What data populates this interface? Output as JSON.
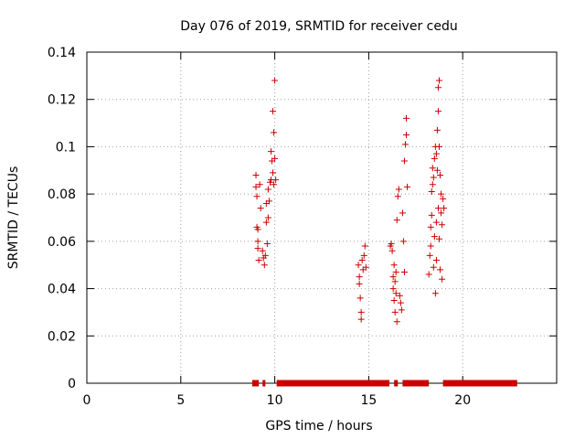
{
  "chart_data": {
    "type": "scatter",
    "title": "Day 076 of 2019, SRMTID for receiver cedu",
    "xlabel": "GPS time / hours",
    "ylabel": "SRMTID / TECUs",
    "xlim": [
      0,
      25
    ],
    "ylim": [
      0,
      0.14
    ],
    "xticks": [
      0,
      5,
      10,
      15,
      20
    ],
    "yticks": [
      0,
      0.02,
      0.04,
      0.06,
      0.08,
      0.1,
      0.12,
      0.14
    ],
    "xtick_labels": [
      "0",
      "5",
      "10",
      "15",
      "20"
    ],
    "ytick_labels": [
      "0",
      "0.02",
      "0.04",
      "0.06",
      "0.08",
      "0.1",
      "0.12",
      "0.14"
    ],
    "grid": true,
    "marker": "+",
    "color": "#cc0000",
    "series": [
      {
        "name": "SRMTID",
        "points": [
          [
            9.0,
            0.088
          ],
          [
            9.0,
            0.083
          ],
          [
            9.05,
            0.079
          ],
          [
            9.05,
            0.066
          ],
          [
            9.1,
            0.065
          ],
          [
            9.1,
            0.06
          ],
          [
            9.1,
            0.057
          ],
          [
            9.15,
            0.052
          ],
          [
            9.2,
            0.084
          ],
          [
            9.25,
            0.074
          ],
          [
            9.35,
            0.056
          ],
          [
            9.4,
            0.053
          ],
          [
            9.45,
            0.05
          ],
          [
            9.5,
            0.054
          ],
          [
            9.55,
            0.076
          ],
          [
            9.55,
            0.068
          ],
          [
            9.6,
            0.059
          ],
          [
            9.65,
            0.082
          ],
          [
            9.65,
            0.07
          ],
          [
            9.7,
            0.077
          ],
          [
            9.75,
            0.085
          ],
          [
            9.8,
            0.086
          ],
          [
            9.8,
            0.098
          ],
          [
            9.85,
            0.094
          ],
          [
            9.9,
            0.115
          ],
          [
            9.9,
            0.089
          ],
          [
            9.95,
            0.106
          ],
          [
            9.95,
            0.084
          ],
          [
            10.0,
            0.128
          ],
          [
            10.0,
            0.095
          ],
          [
            10.05,
            0.086
          ],
          [
            14.45,
            0.05
          ],
          [
            14.5,
            0.045
          ],
          [
            14.5,
            0.042
          ],
          [
            14.55,
            0.036
          ],
          [
            14.6,
            0.03
          ],
          [
            14.6,
            0.027
          ],
          [
            14.65,
            0.052
          ],
          [
            14.7,
            0.048
          ],
          [
            14.75,
            0.054
          ],
          [
            14.8,
            0.058
          ],
          [
            14.85,
            0.049
          ],
          [
            16.15,
            0.058
          ],
          [
            16.2,
            0.059
          ],
          [
            16.25,
            0.056
          ],
          [
            16.3,
            0.045
          ],
          [
            16.3,
            0.04
          ],
          [
            16.35,
            0.05
          ],
          [
            16.35,
            0.035
          ],
          [
            16.4,
            0.043
          ],
          [
            16.4,
            0.03
          ],
          [
            16.45,
            0.047
          ],
          [
            16.45,
            0.038
          ],
          [
            16.5,
            0.069
          ],
          [
            16.5,
            0.026
          ],
          [
            16.55,
            0.079
          ],
          [
            16.6,
            0.082
          ],
          [
            16.65,
            0.037
          ],
          [
            16.7,
            0.034
          ],
          [
            16.75,
            0.031
          ],
          [
            16.8,
            0.072
          ],
          [
            16.85,
            0.06
          ],
          [
            16.9,
            0.047
          ],
          [
            16.9,
            0.094
          ],
          [
            16.95,
            0.101
          ],
          [
            17.0,
            0.105
          ],
          [
            17.0,
            0.112
          ],
          [
            17.05,
            0.083
          ],
          [
            18.2,
            0.046
          ],
          [
            18.25,
            0.054
          ],
          [
            18.3,
            0.066
          ],
          [
            18.3,
            0.058
          ],
          [
            18.35,
            0.071
          ],
          [
            18.35,
            0.081
          ],
          [
            18.4,
            0.084
          ],
          [
            18.4,
            0.091
          ],
          [
            18.45,
            0.087
          ],
          [
            18.45,
            0.049
          ],
          [
            18.5,
            0.095
          ],
          [
            18.5,
            0.062
          ],
          [
            18.55,
            0.1
          ],
          [
            18.55,
            0.038
          ],
          [
            18.6,
            0.097
          ],
          [
            18.6,
            0.068
          ],
          [
            18.6,
            0.052
          ],
          [
            18.65,
            0.107
          ],
          [
            18.65,
            0.09
          ],
          [
            18.7,
            0.125
          ],
          [
            18.7,
            0.115
          ],
          [
            18.7,
            0.074
          ],
          [
            18.75,
            0.128
          ],
          [
            18.75,
            0.1
          ],
          [
            18.75,
            0.061
          ],
          [
            18.8,
            0.088
          ],
          [
            18.8,
            0.048
          ],
          [
            18.85,
            0.08
          ],
          [
            18.85,
            0.072
          ],
          [
            18.9,
            0.067
          ],
          [
            18.9,
            0.044
          ],
          [
            18.95,
            0.078
          ],
          [
            19.0,
            0.074
          ]
        ]
      },
      {
        "name": "data coverage (y=0)",
        "segments": [
          [
            8.8,
            9.15
          ],
          [
            9.35,
            9.5
          ],
          [
            10.1,
            16.1
          ],
          [
            16.35,
            16.55
          ],
          [
            16.8,
            18.2
          ],
          [
            18.95,
            22.9
          ]
        ]
      }
    ]
  }
}
